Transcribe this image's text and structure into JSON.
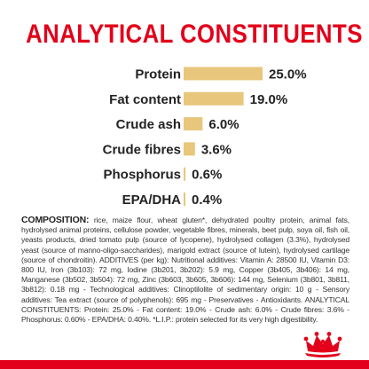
{
  "title": "ANALYTICAL CONSTITUENTS",
  "colors": {
    "accent": "#e2001a",
    "bar": "#e8c77c",
    "label": "#222222"
  },
  "chart_data": {
    "type": "bar",
    "orientation": "horizontal",
    "categories": [
      "Protein",
      "Fat content",
      "Crude ash",
      "Crude fibres",
      "Phosphorus",
      "EPA/DHA"
    ],
    "values": [
      25.0,
      19.0,
      6.0,
      3.6,
      0.6,
      0.4
    ],
    "value_labels": [
      "25.0%",
      "19.0%",
      "6.0%",
      "3.6%",
      "0.6%",
      "0.4%"
    ],
    "grid": false
  },
  "composition": {
    "lead": "COMPOSITION:",
    "text": " rice, maize flour, wheat gluten*, dehydrated poultry protein, animal fats, hydrolysed animal proteins, cellulose powder, vegetable fibres, minerals, beet pulp, soya oil, fish oil, yeasts products, dried tomato pulp (source of lycopene), hydrolysed collagen (3.3%), hydrolysed yeast (source of manno-oligo-saccharides), marigold extract (source of lutein), hydrolysed cartilage (source of chondroitin). ADDITIVES (per kg): Nutritional additives: Vitamin A: 28500 IU, Vitamin D3: 800 IU, Iron (3b103): 72 mg, Iodine (3b201, 3b202): 5.9 mg, Copper (3b405, 3b406): 14 mg, Manganese (3b502, 3b504): 72 mg, Zinc (3b603, 3b605, 3b606): 144 mg, Selenium (3b801, 3b811, 3b812): 0.18 mg - Technological additives: Clinoptilolite of sedimentary origin: 10 g - Sensory additives: Tea extract (source of polyphenols): 695 mg - Preservatives - Antioxidants. ANALYTICAL CONSTITUENTS: Protein: 25.0% - Fat content: 19.0% - Crude ash: 6.0% - Crude fibres: 3.6% - Phosphorus: 0.60% - EPA/DHA: 0.40%. *L.I.P.: protein selected for its very high digestibility."
  },
  "logo_icon": "crown-icon"
}
